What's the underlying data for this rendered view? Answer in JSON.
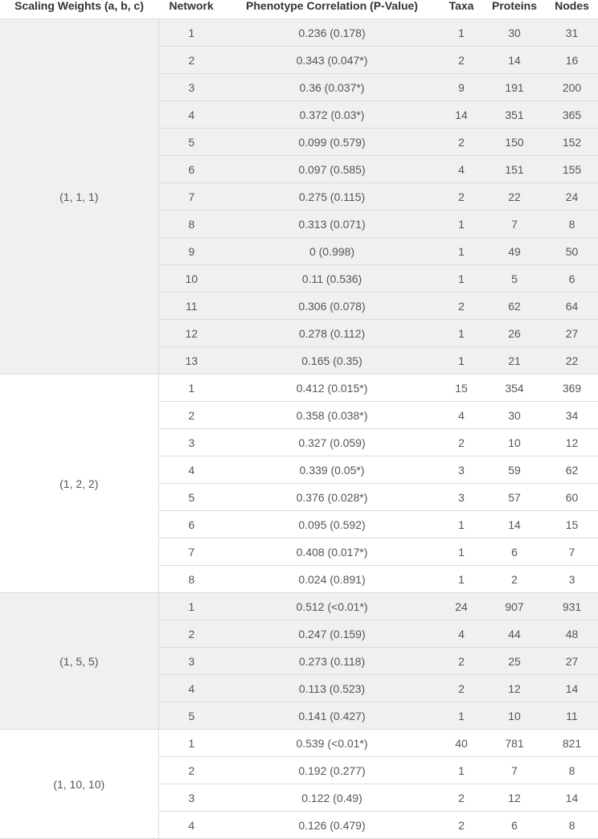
{
  "headers": [
    "Scaling Weights (a, b, c)",
    "Network",
    "Phenotype Correlation (P-Value)",
    "Taxa",
    "Proteins",
    "Nodes"
  ],
  "groups": [
    {
      "label": "(1, 1, 1)",
      "shade": "gray",
      "rows": [
        [
          "1",
          "0.236 (0.178)",
          "1",
          "30",
          "31"
        ],
        [
          "2",
          "0.343 (0.047*)",
          "2",
          "14",
          "16"
        ],
        [
          "3",
          "0.36 (0.037*)",
          "9",
          "191",
          "200"
        ],
        [
          "4",
          "0.372 (0.03*)",
          "14",
          "351",
          "365"
        ],
        [
          "5",
          "0.099 (0.579)",
          "2",
          "150",
          "152"
        ],
        [
          "6",
          "0.097 (0.585)",
          "4",
          "151",
          "155"
        ],
        [
          "7",
          "0.275 (0.115)",
          "2",
          "22",
          "24"
        ],
        [
          "8",
          "0.313 (0.071)",
          "1",
          "7",
          "8"
        ],
        [
          "9",
          "0 (0.998)",
          "1",
          "49",
          "50"
        ],
        [
          "10",
          "0.11 (0.536)",
          "1",
          "5",
          "6"
        ],
        [
          "11",
          "0.306 (0.078)",
          "2",
          "62",
          "64"
        ],
        [
          "12",
          "0.278 (0.112)",
          "1",
          "26",
          "27"
        ],
        [
          "13",
          "0.165 (0.35)",
          "1",
          "21",
          "22"
        ]
      ]
    },
    {
      "label": "(1, 2, 2)",
      "shade": "white",
      "rows": [
        [
          "1",
          "0.412 (0.015*)",
          "15",
          "354",
          "369"
        ],
        [
          "2",
          "0.358 (0.038*)",
          "4",
          "30",
          "34"
        ],
        [
          "3",
          "0.327 (0.059)",
          "2",
          "10",
          "12"
        ],
        [
          "4",
          "0.339 (0.05*)",
          "3",
          "59",
          "62"
        ],
        [
          "5",
          "0.376 (0.028*)",
          "3",
          "57",
          "60"
        ],
        [
          "6",
          "0.095 (0.592)",
          "1",
          "14",
          "15"
        ],
        [
          "7",
          "0.408 (0.017*)",
          "1",
          "6",
          "7"
        ],
        [
          "8",
          "0.024 (0.891)",
          "1",
          "2",
          "3"
        ]
      ]
    },
    {
      "label": "(1, 5, 5)",
      "shade": "gray",
      "rows": [
        [
          "1",
          "0.512 (<0.01*)",
          "24",
          "907",
          "931"
        ],
        [
          "2",
          "0.247 (0.159)",
          "4",
          "44",
          "48"
        ],
        [
          "3",
          "0.273 (0.118)",
          "2",
          "25",
          "27"
        ],
        [
          "4",
          "0.113 (0.523)",
          "2",
          "12",
          "14"
        ],
        [
          "5",
          "0.141 (0.427)",
          "1",
          "10",
          "11"
        ]
      ]
    },
    {
      "label": "(1, 10, 10)",
      "shade": "white",
      "rows": [
        [
          "1",
          "0.539 (<0.01*)",
          "40",
          "781",
          "821"
        ],
        [
          "2",
          "0.192 (0.277)",
          "1",
          "7",
          "8"
        ],
        [
          "3",
          "0.122 (0.49)",
          "2",
          "12",
          "14"
        ],
        [
          "4",
          "0.126 (0.479)",
          "2",
          "6",
          "8"
        ]
      ]
    }
  ]
}
